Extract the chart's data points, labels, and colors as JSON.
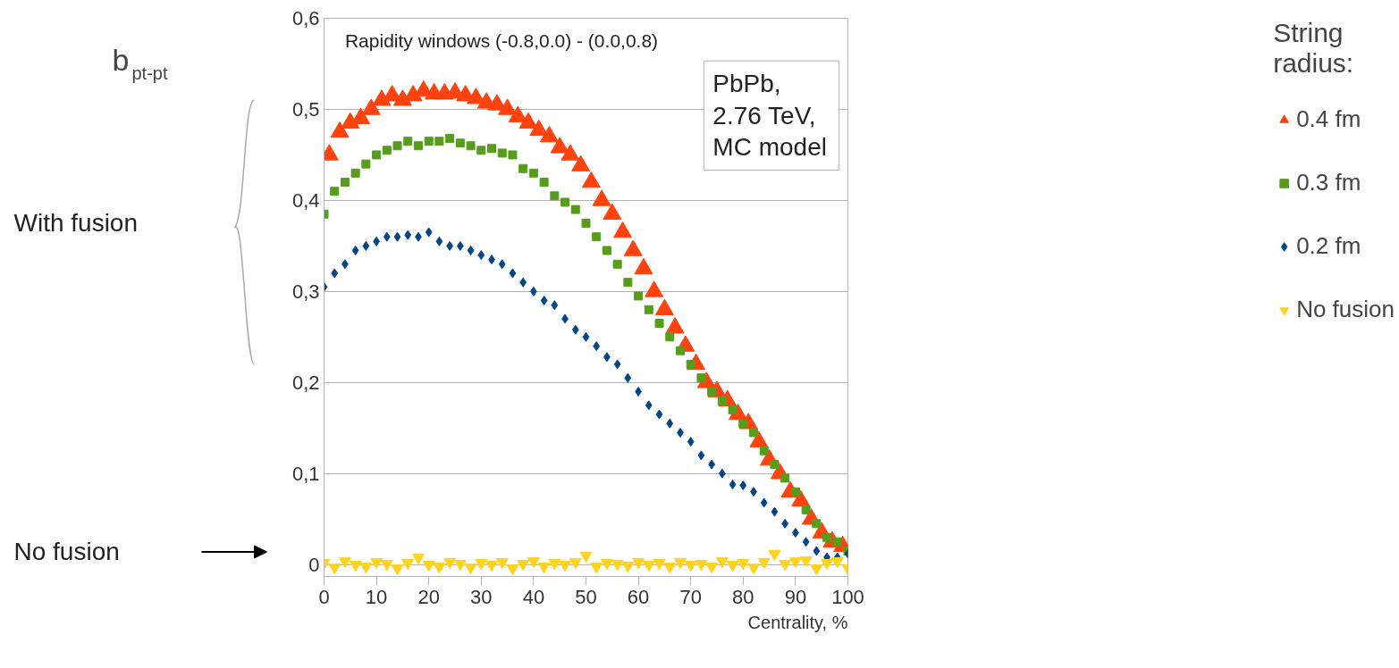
{
  "chart_data": {
    "type": "scatter",
    "ylabel": "b$_{pt-pt}$",
    "xlabel": "Centrality, %",
    "legend_title": "String\nradius:",
    "annotations": [
      "Rapidity windows (-0.8,0.0) - (0.0,0.8)",
      "PbPb,\n  2.76 TeV,\nMC model",
      "With fusion",
      "No fusion"
    ],
    "xlim": [
      0,
      100
    ],
    "xticks": [
      0,
      10,
      20,
      30,
      40,
      50,
      60,
      70,
      80,
      90,
      100
    ],
    "ylim": [
      -0.013,
      0.6
    ],
    "yticks": [
      {
        "value": 0,
        "label": "0"
      },
      {
        "value": 0.1,
        "label": "0,1"
      },
      {
        "value": 0.2,
        "label": "0,2"
      },
      {
        "value": 0.3,
        "label": "0,3"
      },
      {
        "value": 0.4,
        "label": "0,4"
      },
      {
        "value": 0.5,
        "label": "0,5"
      },
      {
        "value": 0.6,
        "label": "0,6"
      }
    ],
    "grid": "y",
    "legend": "right",
    "series": [
      {
        "name": "0.4 fm",
        "color": "#ff420e",
        "marker": "triangle",
        "x": [
          1,
          3,
          5,
          7,
          9,
          11,
          13,
          15,
          17,
          19,
          21,
          23,
          25,
          27,
          29,
          31,
          33,
          35,
          37,
          39,
          41,
          43,
          45,
          47,
          49,
          51,
          53,
          55,
          57,
          59,
          61,
          63,
          65,
          67,
          69,
          71,
          73,
          75,
          77,
          79,
          81,
          83,
          85,
          87,
          89,
          91,
          93,
          95,
          97,
          99
        ],
        "values": [
          0.45,
          0.475,
          0.485,
          0.49,
          0.5,
          0.51,
          0.515,
          0.51,
          0.515,
          0.52,
          0.517,
          0.517,
          0.518,
          0.515,
          0.512,
          0.507,
          0.505,
          0.5,
          0.492,
          0.485,
          0.477,
          0.47,
          0.458,
          0.45,
          0.438,
          0.42,
          0.4,
          0.385,
          0.365,
          0.345,
          0.325,
          0.3,
          0.28,
          0.26,
          0.24,
          0.22,
          0.2,
          0.19,
          0.18,
          0.165,
          0.155,
          0.135,
          0.115,
          0.1,
          0.08,
          0.07,
          0.05,
          0.035,
          0.025,
          0.02
        ]
      },
      {
        "name": "0.3 fm",
        "color": "#579d1c",
        "marker": "square",
        "x": [
          0,
          2,
          4,
          6,
          8,
          10,
          12,
          14,
          16,
          18,
          20,
          22,
          24,
          26,
          28,
          30,
          32,
          34,
          36,
          38,
          40,
          42,
          44,
          46,
          48,
          50,
          52,
          54,
          56,
          58,
          60,
          62,
          64,
          66,
          68,
          70,
          72,
          74,
          76,
          78,
          80,
          82,
          84,
          86,
          88,
          90,
          92,
          94,
          96,
          98,
          100
        ],
        "values": [
          0.385,
          0.41,
          0.42,
          0.43,
          0.44,
          0.45,
          0.455,
          0.46,
          0.465,
          0.46,
          0.465,
          0.465,
          0.468,
          0.463,
          0.46,
          0.455,
          0.457,
          0.452,
          0.45,
          0.435,
          0.43,
          0.42,
          0.405,
          0.398,
          0.39,
          0.375,
          0.36,
          0.345,
          0.33,
          0.31,
          0.295,
          0.28,
          0.265,
          0.25,
          0.235,
          0.22,
          0.205,
          0.19,
          0.18,
          0.17,
          0.155,
          0.145,
          0.125,
          0.11,
          0.095,
          0.08,
          0.06,
          0.045,
          0.03,
          0.025,
          0.015
        ]
      },
      {
        "name": "0.2 fm",
        "color": "#004586",
        "marker": "diamond",
        "x": [
          0,
          2,
          4,
          6,
          8,
          10,
          12,
          14,
          16,
          18,
          20,
          22,
          24,
          26,
          28,
          30,
          32,
          34,
          36,
          38,
          40,
          42,
          44,
          46,
          48,
          50,
          52,
          54,
          56,
          58,
          60,
          62,
          64,
          66,
          68,
          70,
          72,
          74,
          76,
          78,
          80,
          82,
          84,
          86,
          88,
          90,
          92,
          94,
          96,
          98,
          100
        ],
        "values": [
          0.305,
          0.32,
          0.33,
          0.345,
          0.35,
          0.355,
          0.36,
          0.36,
          0.362,
          0.36,
          0.365,
          0.355,
          0.35,
          0.35,
          0.345,
          0.34,
          0.335,
          0.33,
          0.32,
          0.31,
          0.3,
          0.29,
          0.285,
          0.27,
          0.258,
          0.25,
          0.24,
          0.228,
          0.22,
          0.205,
          0.19,
          0.175,
          0.165,
          0.155,
          0.145,
          0.135,
          0.12,
          0.11,
          0.1,
          0.088,
          0.087,
          0.08,
          0.068,
          0.058,
          0.045,
          0.035,
          0.025,
          0.015,
          0.008,
          0.008,
          0.012
        ]
      },
      {
        "name": "No fusion",
        "color": "#ffd320",
        "marker": "triangle_down",
        "x": [
          0,
          2,
          4,
          6,
          8,
          10,
          12,
          14,
          16,
          18,
          20,
          22,
          24,
          26,
          28,
          30,
          32,
          34,
          36,
          38,
          40,
          42,
          44,
          46,
          48,
          50,
          52,
          54,
          56,
          58,
          60,
          62,
          64,
          66,
          68,
          70,
          72,
          74,
          76,
          78,
          80,
          82,
          84,
          86,
          88,
          90,
          92,
          94,
          96,
          98,
          100
        ],
        "values": [
          0.002,
          -0.003,
          0.004,
          0.0,
          -0.002,
          0.003,
          0.001,
          -0.004,
          0.002,
          0.008,
          0.0,
          -0.002,
          0.003,
          0.001,
          -0.003,
          0.002,
          0.0,
          0.003,
          -0.004,
          0.001,
          0.004,
          -0.002,
          0.002,
          0.0,
          0.003,
          0.01,
          -0.002,
          0.002,
          0.001,
          -0.001,
          0.003,
          0.0,
          0.002,
          -0.002,
          0.003,
          0.0,
          0.001,
          -0.002,
          0.004,
          0.0,
          0.002,
          -0.003,
          0.003,
          0.012,
          0.001,
          0.004,
          0.005,
          -0.004,
          0.002,
          0.004,
          -0.004
        ]
      }
    ]
  }
}
